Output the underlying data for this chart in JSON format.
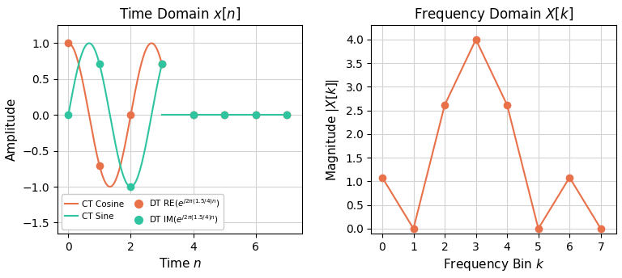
{
  "title_left": "Time Domain $x[n]$",
  "title_right": "Frequency Domain $X[k]$",
  "xlabel_left": "Time $n$",
  "ylabel_left": "Amplitude",
  "xlabel_right": "Frequency Bin $k$",
  "ylabel_right": "Magnitude $|X[k]|$",
  "ct_color": "#E8714A",
  "dt_re_color": "#E8714A",
  "ct_sine_color": "#2EC4A0",
  "dt_im_color": "#2EC4A0",
  "freq_color": "#E8714A",
  "N": 8,
  "n_signal": 4,
  "omega_num": 1.5,
  "omega_den": 4.0,
  "ylim_left": [
    -1.65,
    1.25
  ],
  "ylim_right": [
    -0.1,
    4.3
  ],
  "xlim_left": [
    -0.35,
    7.5
  ],
  "xlim_right": [
    -0.35,
    7.5
  ],
  "xticks_left": [
    0,
    2,
    4,
    6
  ],
  "xticks_right": [
    0,
    1,
    2,
    3,
    4,
    5,
    6,
    7
  ],
  "figsize": [
    7.68,
    3.44
  ],
  "dpi": 100
}
